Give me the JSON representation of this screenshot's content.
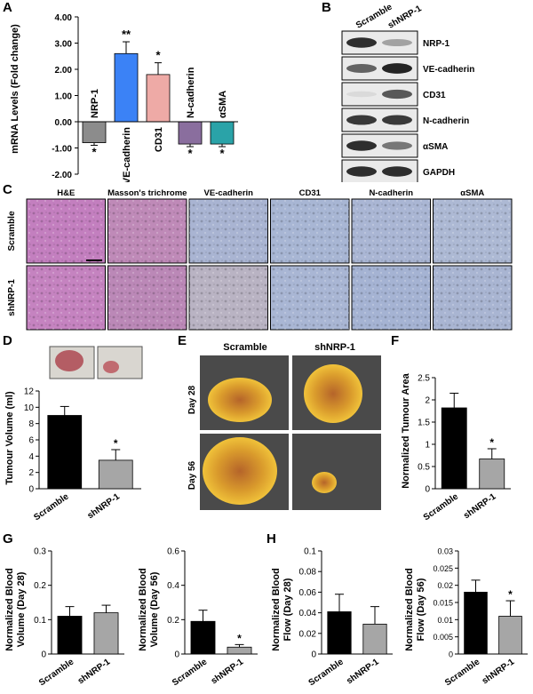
{
  "panel_labels": [
    "A",
    "B",
    "C",
    "D",
    "E",
    "F",
    "G",
    "H"
  ],
  "panel_a": {
    "ylabel": "mRNA Levels (Fold change)",
    "yticks": [
      "4.00",
      "3.00",
      "2.00",
      "1.00",
      "0.00",
      "-1.00",
      "-2.00"
    ],
    "colors": [
      "#8c8c8c",
      "#3b82f6",
      "#eeaaa6",
      "#8a6e9e",
      "#2aa3a8"
    ]
  },
  "panel_b": {
    "columns": [
      "Scramble",
      "shNRP-1"
    ],
    "rows": [
      "NRP-1",
      "VE-cadherin",
      "CD31",
      "N-cadherin",
      "αSMA",
      "GAPDH"
    ],
    "intensity": [
      [
        0.9,
        0.35
      ],
      [
        0.65,
        0.95
      ],
      [
        0.08,
        0.7
      ],
      [
        0.85,
        0.85
      ],
      [
        0.9,
        0.55
      ],
      [
        0.9,
        0.9
      ]
    ]
  },
  "panel_c": {
    "columns": [
      "H&E",
      "Masson's trichrome",
      "VE-cadherin",
      "CD31",
      "N-cadherin",
      "αSMA"
    ],
    "rows": [
      "Scramble",
      "shNRP-1"
    ],
    "tile_colors": [
      "#c37fbf",
      "#bf8ab8",
      "#a9b4d2",
      "#a8b6d4",
      "#aab6d4",
      "#adb9d4"
    ],
    "tile_colors_lower": [
      "#c583c0",
      "#bb88b7",
      "#b9b3c3",
      "#a9b6d4",
      "#a5b3d3",
      "#a9b5d2"
    ]
  },
  "panel_d": {
    "ylabel": "Tumour Volume (ml)"
  },
  "panel_e": {
    "columns": [
      "Scramble",
      "shNRP-1"
    ],
    "rows": [
      "Day 28",
      "Day 56"
    ]
  },
  "panel_f": {
    "ylabel": "Normalized Tumour Area"
  },
  "panel_g1": {
    "ylabel_line1": "Normalized Blood",
    "ylabel_line2": "Volume (Day 28)"
  },
  "panel_g2": {
    "ylabel_line1": "Normalized Blood",
    "ylabel_line2": "Volume (Day 56)"
  },
  "panel_h1": {
    "ylabel_line1": "Normalized Blood",
    "ylabel_line2": "Flow (Day 28)"
  },
  "panel_h2": {
    "ylabel_line1": "Normalized Blood",
    "ylabel_line2": "Flow (Day 56)"
  },
  "chart_data": [
    {
      "id": "A",
      "type": "bar",
      "categories": [
        "NRP-1",
        "VE-cadherin",
        "CD31",
        "N-cadherin",
        "αSMA"
      ],
      "values": [
        -0.8,
        2.6,
        1.8,
        -0.85,
        -0.85
      ],
      "errors": [
        0.1,
        0.45,
        0.45,
        0.1,
        0.1
      ],
      "significance": [
        "*",
        "**",
        "*",
        "*",
        "*"
      ],
      "ylabel": "mRNA Levels (Fold change)",
      "ylim": [
        -2,
        4
      ]
    },
    {
      "id": "D",
      "type": "bar",
      "categories": [
        "Scramble",
        "shNRP-1"
      ],
      "values": [
        9.0,
        3.5
      ],
      "errors": [
        1.1,
        1.3
      ],
      "significance": [
        "",
        "*"
      ],
      "ylabel": "Tumour Volume (ml)",
      "ylim": [
        0,
        12
      ],
      "yticks": [
        "0",
        "2",
        "4",
        "6",
        "8",
        "10",
        "12"
      ],
      "colors": [
        "#000000",
        "#a6a6a6"
      ]
    },
    {
      "id": "F",
      "type": "bar",
      "categories": [
        "Scramble",
        "shNRP-1"
      ],
      "values": [
        1.82,
        0.67
      ],
      "errors": [
        0.33,
        0.23
      ],
      "significance": [
        "",
        "*"
      ],
      "ylabel": "Normalized Tumour Area",
      "ylim": [
        0,
        2.5
      ],
      "yticks": [
        "0",
        "0.5",
        "1",
        "1.5",
        "2",
        "2.5"
      ],
      "colors": [
        "#000000",
        "#a6a6a6"
      ]
    },
    {
      "id": "G1",
      "type": "bar",
      "categories": [
        "Scramble",
        "shNRP-1"
      ],
      "values": [
        0.11,
        0.12
      ],
      "errors": [
        0.028,
        0.022
      ],
      "significance": [
        "",
        ""
      ],
      "ylabel": "Normalized Blood Volume (Day 28)",
      "ylim": [
        0,
        0.3
      ],
      "yticks": [
        "0",
        "0.1",
        "0.2",
        "0.3"
      ],
      "colors": [
        "#000000",
        "#a6a6a6"
      ]
    },
    {
      "id": "G2",
      "type": "bar",
      "categories": [
        "Scramble",
        "shNRP-1"
      ],
      "values": [
        0.19,
        0.04
      ],
      "errors": [
        0.065,
        0.015
      ],
      "significance": [
        "",
        "*"
      ],
      "ylabel": "Normalized Blood Volume (Day 56)",
      "ylim": [
        0,
        0.6
      ],
      "yticks": [
        "0",
        "0.2",
        "0.4",
        "0.6"
      ],
      "colors": [
        "#000000",
        "#a6a6a6"
      ]
    },
    {
      "id": "H1",
      "type": "bar",
      "categories": [
        "Scramble",
        "shNRP-1"
      ],
      "values": [
        0.041,
        0.029
      ],
      "errors": [
        0.017,
        0.017
      ],
      "significance": [
        "",
        ""
      ],
      "ylabel": "Normalized Blood Flow (Day 28)",
      "ylim": [
        0,
        0.1
      ],
      "yticks": [
        "0",
        "0.02",
        "0.04",
        "0.06",
        "0.08",
        "0.1"
      ],
      "colors": [
        "#000000",
        "#a6a6a6"
      ]
    },
    {
      "id": "H2",
      "type": "bar",
      "categories": [
        "Scramble",
        "shNRP-1"
      ],
      "values": [
        0.018,
        0.011
      ],
      "errors": [
        0.0035,
        0.0045
      ],
      "significance": [
        "",
        "*"
      ],
      "ylabel": "Normalized Blood Flow (Day 56)",
      "ylim": [
        0,
        0.03
      ],
      "yticks": [
        "0",
        "0.005",
        "0.01",
        "0.015",
        "0.02",
        "0.025",
        "0.03"
      ],
      "colors": [
        "#000000",
        "#a6a6a6"
      ]
    }
  ]
}
